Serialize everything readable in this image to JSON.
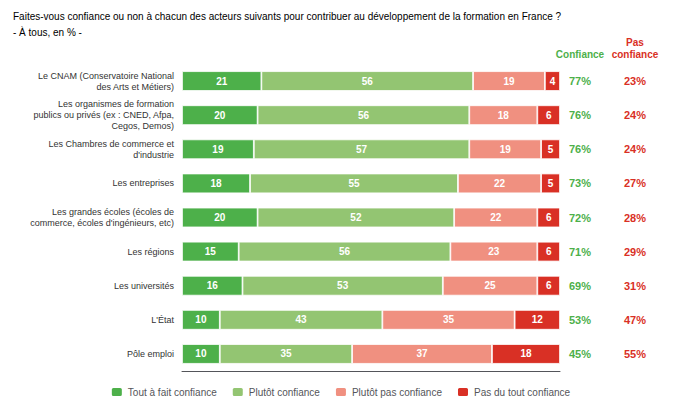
{
  "chart_data": {
    "type": "bar",
    "orientation": "horizontal",
    "stacked": true,
    "title": "Faites-vous confiance ou non à chacun des acteurs suivants pour contribuer au développement de la formation en France ?",
    "subtitle": "- À tous, en % -",
    "categories": [
      "Le CNAM (Conservatoire National\ndes Arts et Métiers)",
      "Les organismes de formation\npublics ou privés (ex : CNED, Afpa,\nCegos, Demos)",
      "Les Chambres de commerce et\nd'industrie",
      "Les entreprises",
      "Les grandes écoles (écoles de\ncommerce, écoles d'ingénieurs, etc)",
      "Les régions",
      "Les universités",
      "L'État",
      "Pôle emploi"
    ],
    "series": [
      {
        "name": "Tout à fait confiance",
        "color": "#4db04a",
        "values": [
          21,
          20,
          19,
          18,
          20,
          15,
          16,
          10,
          10
        ]
      },
      {
        "name": "Plutôt confiance",
        "color": "#93c572",
        "values": [
          56,
          56,
          57,
          55,
          52,
          56,
          53,
          43,
          35
        ]
      },
      {
        "name": "Plutôt pas confiance",
        "color": "#f09080",
        "values": [
          19,
          18,
          19,
          22,
          22,
          23,
          25,
          35,
          37
        ]
      },
      {
        "name": "Pas du tout confiance",
        "color": "#d93025",
        "values": [
          4,
          6,
          5,
          5,
          6,
          6,
          6,
          12,
          18
        ]
      }
    ],
    "annotations": [
      {
        "header": "Confiance",
        "color": "#4db04a",
        "values": [
          77,
          76,
          76,
          73,
          72,
          71,
          69,
          53,
          45
        ],
        "value_labels": [
          "77%",
          "76%",
          "76%",
          "73%",
          "72%",
          "71%",
          "69%",
          "53%",
          "45%"
        ]
      },
      {
        "header": "Pas\nconfiance",
        "color": "#d93025",
        "values": [
          23,
          24,
          24,
          27,
          28,
          29,
          31,
          47,
          55
        ],
        "value_labels": [
          "23%",
          "24%",
          "24%",
          "27%",
          "28%",
          "29%",
          "31%",
          "47%",
          "55%"
        ]
      }
    ],
    "xlim": [
      0,
      100
    ],
    "tick_labels": "y",
    "data_labels": true,
    "grid": false,
    "legend": "bottom"
  }
}
